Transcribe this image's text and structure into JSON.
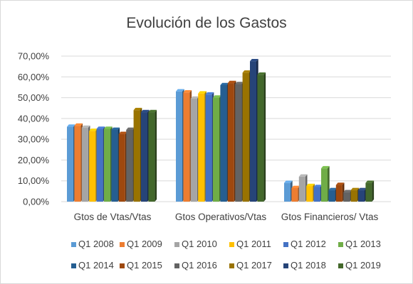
{
  "chart_data": {
    "type": "bar",
    "title": "Evolución de los Gastos",
    "xlabel": "",
    "ylabel": "",
    "ylim": [
      0,
      0.7
    ],
    "yticks": [
      0,
      0.1,
      0.2,
      0.3,
      0.4,
      0.5,
      0.6,
      0.7
    ],
    "ytick_labels": [
      "0,00%",
      "10,00%",
      "20,00%",
      "30,00%",
      "40,00%",
      "50,00%",
      "60,00%",
      "70,00%"
    ],
    "grid": true,
    "legend_position": "bottom",
    "style": "3d-clustered-column",
    "categories": [
      "Gtos de Vtas/Vtas",
      "Gtos Operativos/Vtas",
      "Gtos Financieros/ Vtas"
    ],
    "series": [
      {
        "name": "Q1 2008",
        "color": "#5B9BD5",
        "values": [
          0.36,
          0.53,
          0.09
        ]
      },
      {
        "name": "Q1 2009",
        "color": "#ED7D31",
        "values": [
          0.365,
          0.525,
          0.065
        ]
      },
      {
        "name": "Q1 2010",
        "color": "#A5A5A5",
        "values": [
          0.355,
          0.495,
          0.12
        ]
      },
      {
        "name": "Q1 2011",
        "color": "#FFC000",
        "values": [
          0.34,
          0.52,
          0.075
        ]
      },
      {
        "name": "Q1 2012",
        "color": "#4472C4",
        "values": [
          0.35,
          0.515,
          0.07
        ]
      },
      {
        "name": "Q1 2013",
        "color": "#70AD47",
        "values": [
          0.35,
          0.5,
          0.16
        ]
      },
      {
        "name": "Q1 2014",
        "color": "#255E91",
        "values": [
          0.345,
          0.56,
          0.055
        ]
      },
      {
        "name": "Q1 2015",
        "color": "#9E480E",
        "values": [
          0.325,
          0.57,
          0.08
        ]
      },
      {
        "name": "Q1 2016",
        "color": "#636363",
        "values": [
          0.345,
          0.565,
          0.045
        ]
      },
      {
        "name": "Q1 2017",
        "color": "#997300",
        "values": [
          0.44,
          0.62,
          0.055
        ]
      },
      {
        "name": "Q1 2018",
        "color": "#264478",
        "values": [
          0.43,
          0.675,
          0.055
        ]
      },
      {
        "name": "Q1 2019",
        "color": "#43682B",
        "values": [
          0.43,
          0.61,
          0.09
        ]
      }
    ]
  }
}
